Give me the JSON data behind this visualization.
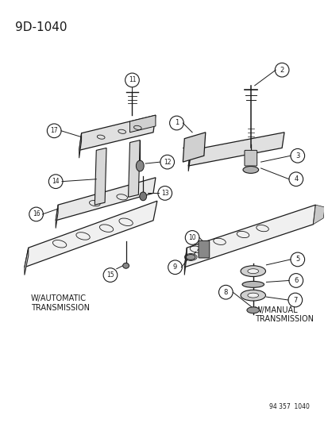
{
  "title": "9D-1040",
  "bg_color": "#ffffff",
  "line_color": "#1a1a1a",
  "footer": "94 357  1040",
  "auto_label": "W/AUTOMATIC\nTRANSMISSION",
  "manual_label": "W/MANUAL\nTRANSMISSION"
}
